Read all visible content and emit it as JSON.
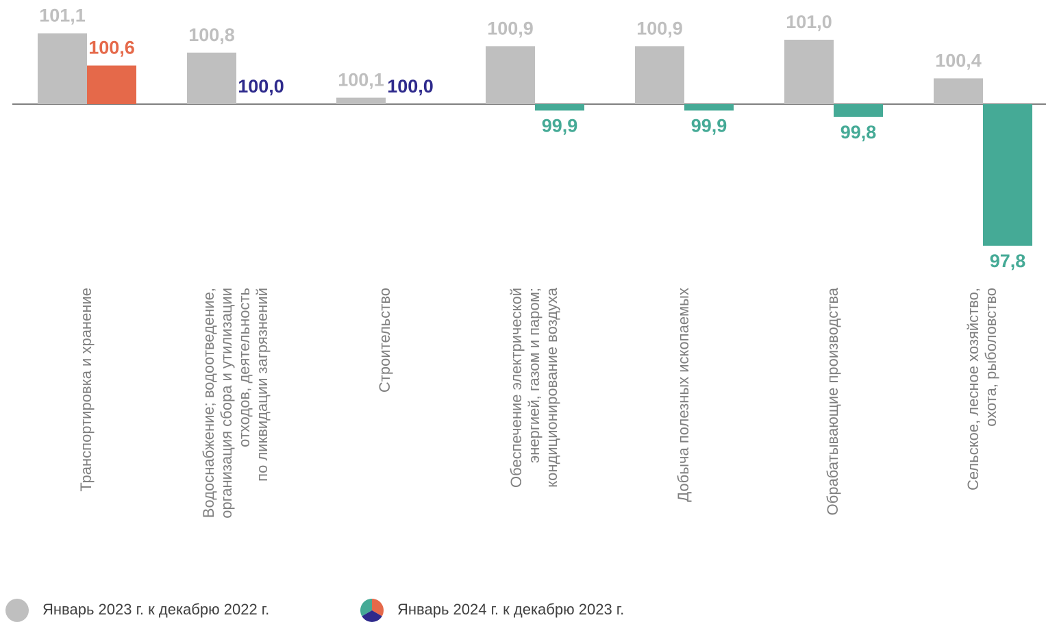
{
  "chart_data": {
    "type": "bar",
    "categories": [
      [
        "Транспортировка и хранение"
      ],
      [
        "Водоснабжение; водоотведение,",
        "организация сбора и утилизации",
        "отходов, деятельность",
        "по ликвидации загрязнений"
      ],
      [
        "Строительство"
      ],
      [
        "Обеспечение электрической",
        "энергией, газом и паром;",
        "кондиционирование воздуха"
      ],
      [
        "Добыча полезных ископаемых"
      ],
      [
        "Обрабатывающие производства"
      ],
      [
        "Сельское, лесное хозяйство,",
        "охота, рыболовство"
      ]
    ],
    "series": [
      {
        "name": "Январь 2023 г. к декабрю 2022 г.",
        "color": "#bfbfbf",
        "label_color": "#bfbfbf",
        "values": [
          101.1,
          100.8,
          100.1,
          100.9,
          100.9,
          101.0,
          100.4
        ],
        "value_labels": [
          "101,1",
          "100,8",
          "100,1",
          "100,9",
          "100,9",
          "101,0",
          "100,4"
        ]
      },
      {
        "name": "Январь 2024 г. к декабрю 2023 г.",
        "colors": [
          "#e5694a",
          "#2e2a8c",
          "#2e2a8c",
          "#45aa96",
          "#45aa96",
          "#45aa96",
          "#45aa96"
        ],
        "values": [
          100.6,
          100.0,
          100.0,
          99.9,
          99.9,
          99.8,
          97.8
        ],
        "value_labels": [
          "100,6",
          "100,0",
          "100,0",
          "99,9",
          "99,9",
          "99,8",
          "97,8"
        ]
      }
    ],
    "bar_base": 100,
    "ylim": [
      97.6,
      101.6
    ],
    "legend": "bottom-left"
  }
}
